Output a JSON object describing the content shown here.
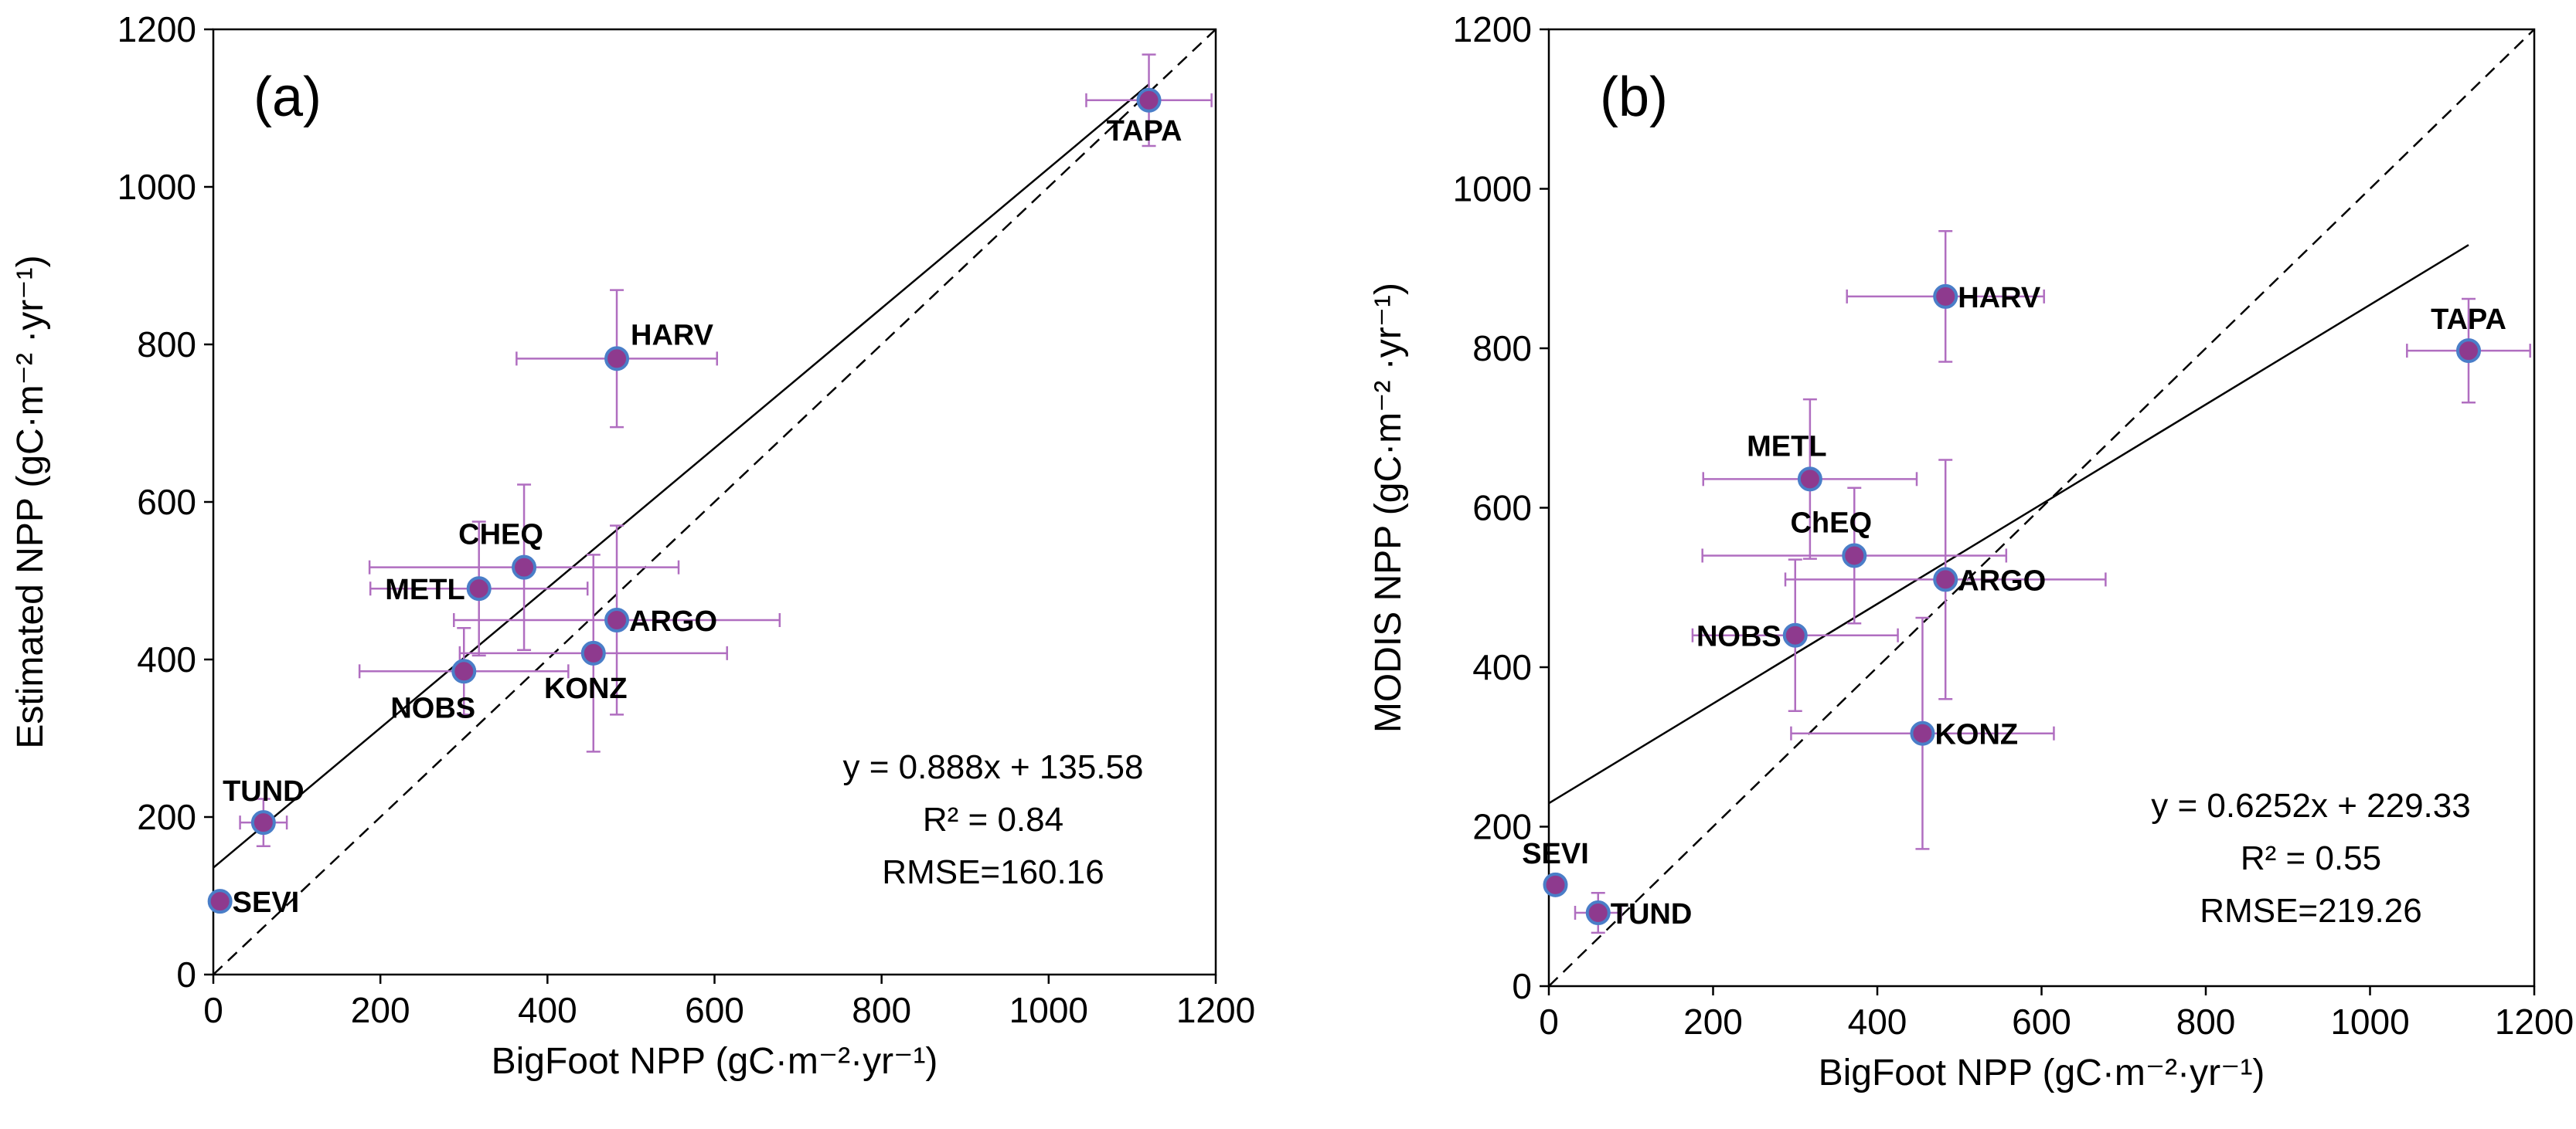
{
  "chart_data": [
    {
      "type": "scatter",
      "panel_label": "(a)",
      "xlabel": "BigFoot NPP (gC·m⁻²·yr⁻¹)",
      "ylabel": "Estimated NPP (gC·m⁻² ·yr⁻¹)",
      "xlim": [
        0,
        1200
      ],
      "ylim": [
        0,
        1200
      ],
      "xticks": [
        0,
        200,
        400,
        600,
        800,
        1000,
        1200
      ],
      "yticks": [
        0,
        200,
        400,
        600,
        800,
        1000,
        1200
      ],
      "grid": false,
      "points": [
        {
          "site": "TAPA",
          "x": 1120,
          "y": 1110,
          "xerr": 75,
          "yerr": 58,
          "label_pos": "below"
        },
        {
          "site": "HARV",
          "x": 483,
          "y": 782,
          "xerr": 120,
          "yerr": 87,
          "label_pos": "right-up"
        },
        {
          "site": "CHEQ",
          "x": 372,
          "y": 517,
          "xerr": 185,
          "yerr": 105,
          "label_pos": "above-left"
        },
        {
          "site": "METL",
          "x": 318,
          "y": 490,
          "xerr": 130,
          "yerr": 85,
          "label_pos": "left"
        },
        {
          "site": "ARGO",
          "x": 483,
          "y": 450,
          "xerr": 195,
          "yerr": 120,
          "label_pos": "right"
        },
        {
          "site": "KONZ",
          "x": 455,
          "y": 408,
          "xerr": 160,
          "yerr": 125,
          "label_pos": "below-right"
        },
        {
          "site": "NOBS",
          "x": 300,
          "y": 385,
          "xerr": 125,
          "yerr": 55,
          "label_pos": "below-left"
        },
        {
          "site": "TUND",
          "x": 60,
          "y": 193,
          "xerr": 28,
          "yerr": 30,
          "label_pos": "above"
        },
        {
          "site": "SEVI",
          "x": 8,
          "y": 93,
          "xerr": 0,
          "yerr": 0,
          "label_pos": "right"
        }
      ],
      "fit_line": {
        "slope": 0.888,
        "intercept": 135.58,
        "x_range": [
          0,
          1120
        ]
      },
      "one_to_one_line": {
        "x_range": [
          0,
          1200
        ]
      },
      "annotation": [
        "y = 0.888x + 135.58",
        "R² = 0.84",
        "RMSE=160.16"
      ]
    },
    {
      "type": "scatter",
      "panel_label": "(b)",
      "xlabel": "BigFoot NPP (gC·m⁻²·yr⁻¹)",
      "ylabel": "MODIS NPP (gC·m⁻² ·yr⁻¹)",
      "xlim": [
        0,
        1200
      ],
      "ylim": [
        0,
        1200
      ],
      "xticks": [
        0,
        200,
        400,
        600,
        800,
        1000,
        1200
      ],
      "yticks": [
        0,
        200,
        400,
        600,
        800,
        1000,
        1200
      ],
      "grid": false,
      "points": [
        {
          "site": "HARV",
          "x": 483,
          "y": 865,
          "xerr": 120,
          "yerr": 82,
          "label_pos": "right"
        },
        {
          "site": "TAPA",
          "x": 1120,
          "y": 797,
          "xerr": 75,
          "yerr": 65,
          "label_pos": "above"
        },
        {
          "site": "METL",
          "x": 318,
          "y": 636,
          "xerr": 130,
          "yerr": 100,
          "label_pos": "above-left"
        },
        {
          "site": "ChEQ",
          "x": 372,
          "y": 540,
          "xerr": 185,
          "yerr": 85,
          "label_pos": "above-left"
        },
        {
          "site": "ARGO",
          "x": 483,
          "y": 510,
          "xerr": 195,
          "yerr": 150,
          "label_pos": "right"
        },
        {
          "site": "NOBS",
          "x": 300,
          "y": 440,
          "xerr": 125,
          "yerr": 95,
          "label_pos": "left"
        },
        {
          "site": "KONZ",
          "x": 455,
          "y": 317,
          "xerr": 160,
          "yerr": 145,
          "label_pos": "right"
        },
        {
          "site": "SEVI",
          "x": 8,
          "y": 127,
          "xerr": 0,
          "yerr": 0,
          "label_pos": "above"
        },
        {
          "site": "TUND",
          "x": 60,
          "y": 92,
          "xerr": 28,
          "yerr": 25,
          "label_pos": "right"
        }
      ],
      "fit_line": {
        "slope": 0.6252,
        "intercept": 229.33,
        "x_range": [
          0,
          1120
        ]
      },
      "one_to_one_line": {
        "x_range": [
          0,
          1200
        ]
      },
      "annotation": [
        "y = 0.6252x + 229.33",
        "R² = 0.55",
        "RMSE=219.26"
      ]
    }
  ],
  "colors": {
    "marker_fill": "#8e3a8e",
    "marker_edge": "#4a7ec8",
    "error_bar": "#b06ec0",
    "line": "#000000"
  }
}
